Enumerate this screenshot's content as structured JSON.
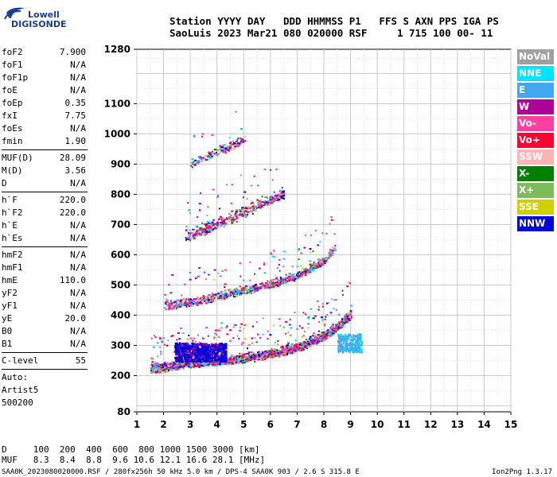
{
  "logo": {
    "line1": "Lowell",
    "line2": "DIGISONDE"
  },
  "header": {
    "line1": "Station YYYY DAY   DDD HHMMSS P1   FFS S AXN PPS IGA PS",
    "line2": "SaoLuis 2023 Mar21 080 020000 RSF     1 715 100 00- 11"
  },
  "params": {
    "g1": [
      {
        "label": "foF2",
        "value": "7.900"
      },
      {
        "label": "foF1",
        "value": "N/A"
      },
      {
        "label": "foF1p",
        "value": "N/A"
      },
      {
        "label": "foE",
        "value": "N/A"
      },
      {
        "label": "foEp",
        "value": "0.35"
      },
      {
        "label": "fxI",
        "value": "7.75"
      },
      {
        "label": "foEs",
        "value": "N/A"
      },
      {
        "label": "fmin",
        "value": "1.90"
      }
    ],
    "g2": [
      {
        "label": "MUF(D)",
        "value": "28.09"
      },
      {
        "label": "M(D)",
        "value": "3.56"
      },
      {
        "label": "D",
        "value": "N/A"
      }
    ],
    "g3": [
      {
        "label": "h`F",
        "value": "220.0"
      },
      {
        "label": "h`F2",
        "value": "220.0"
      },
      {
        "label": "h`E",
        "value": "N/A"
      },
      {
        "label": "h`Es",
        "value": "N/A"
      }
    ],
    "g4": [
      {
        "label": "hmF2",
        "value": "N/A"
      },
      {
        "label": "hmF1",
        "value": "N/A"
      },
      {
        "label": "hmE",
        "value": "110.0"
      },
      {
        "label": "yF2",
        "value": "N/A"
      },
      {
        "label": "yF1",
        "value": "N/A"
      },
      {
        "label": "yE",
        "value": "20.0"
      },
      {
        "label": "B0",
        "value": "N/A"
      },
      {
        "label": "B1",
        "value": "N/A"
      }
    ],
    "g5": [
      {
        "label": "C-level",
        "value": "55"
      }
    ],
    "g6": [
      "Auto:",
      "Artist5",
      "500200"
    ]
  },
  "bottom": {
    "line1": "D     100  200  400  600  800 1000 1500 3000 [km]",
    "line2": "MUF   8.3  8.4  8.8  9.6 10.6 12.1 16.6 28.1 [MHz]"
  },
  "footer": {
    "left": "SAA0K_2023080020000.RSF / 280fx256h 50 kHz 5.0 km / DPS-4 SAA0K 903 / 2.6 S 315.8 E",
    "right": "Ion2Png 1.3.17"
  },
  "legend": [
    {
      "label": "NoVal",
      "color": "#a0a0a0"
    },
    {
      "label": "NNE",
      "color": "#00e5ff"
    },
    {
      "label": "E",
      "color": "#40a8f0"
    },
    {
      "label": "W",
      "color": "#b0009a"
    },
    {
      "label": "Vo-",
      "color": "#ff40a0"
    },
    {
      "label": "Vo+",
      "color": "#ff0030"
    },
    {
      "label": "SSW",
      "color": "#ffb4b4"
    },
    {
      "label": "X-",
      "color": "#008000"
    },
    {
      "label": "X+",
      "color": "#7cbc5a"
    },
    {
      "label": "SSE",
      "color": "#d0d000"
    },
    {
      "label": "NNW",
      "color": "#0000dc"
    }
  ],
  "chart_data": {
    "type": "scatter",
    "title": "",
    "xlabel": "",
    "ylabel": "",
    "xlim": [
      1,
      15
    ],
    "ylim": [
      80,
      1280
    ],
    "x_ticks": [
      1,
      2,
      3,
      4,
      5,
      6,
      7,
      8,
      9,
      10,
      11,
      12,
      13,
      14,
      15
    ],
    "y_ticks": [
      80,
      200,
      300,
      400,
      500,
      600,
      700,
      800,
      900,
      1000,
      1100,
      1280
    ],
    "grid": true,
    "legend_placement": "right",
    "traces": [
      {
        "name": "1st hop F trace",
        "x": [
          1.5,
          2,
          3,
          4,
          5,
          6,
          7,
          8,
          8.5,
          9
        ],
        "y": [
          220,
          225,
          240,
          245,
          255,
          270,
          290,
          330,
          360,
          400
        ]
      },
      {
        "name": "2nd hop F trace",
        "x": [
          2,
          3,
          4,
          5,
          6,
          7,
          8,
          8.4
        ],
        "y": [
          430,
          440,
          460,
          480,
          500,
          530,
          580,
          620
        ]
      },
      {
        "name": "3rd hop F trace",
        "x": [
          2.8,
          3.5,
          4,
          4.5,
          5,
          5.5,
          6,
          6.5
        ],
        "y": [
          660,
          680,
          700,
          720,
          740,
          760,
          780,
          800
        ]
      },
      {
        "name": "4th hop F trace",
        "x": [
          3,
          3.5,
          4,
          4.5,
          5
        ],
        "y": [
          900,
          920,
          940,
          960,
          980
        ]
      }
    ]
  }
}
